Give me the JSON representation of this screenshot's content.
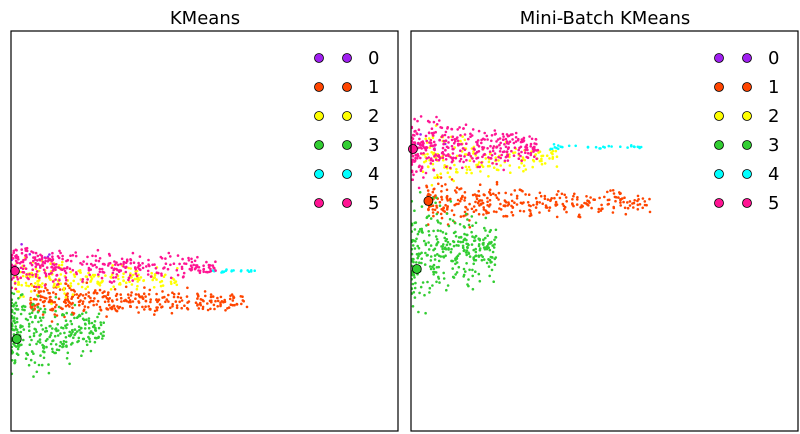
{
  "chart_data": [
    {
      "type": "scatter",
      "title": "KMeans",
      "xlabel": "",
      "ylabel": "",
      "x_ticks": [],
      "y_ticks": [],
      "xlim": [
        0,
        100
      ],
      "ylim": [
        0,
        100
      ],
      "legend": {
        "placement": "top-right",
        "labels": [
          "0",
          "1",
          "2",
          "3",
          "4",
          "5"
        ]
      },
      "series": [
        {
          "name": "0",
          "color": "#a020f0",
          "center": [
            6,
            44
          ],
          "spread": [
            4,
            3
          ],
          "count": 6,
          "extent": [
            0,
            10
          ]
        },
        {
          "name": "1",
          "color": "#ff4500",
          "center": [
            30,
            32.5
          ],
          "spread": [
            28,
            3.5
          ],
          "count": 340,
          "extent": [
            5,
            61
          ]
        },
        {
          "name": "2",
          "color": "#ffff00",
          "center": [
            22,
            38
          ],
          "spread": [
            20,
            4
          ],
          "count": 210,
          "extent": [
            1,
            43
          ]
        },
        {
          "name": "3",
          "color": "#32cd32",
          "center": [
            10,
            25
          ],
          "spread": [
            9,
            8
          ],
          "count": 300,
          "extent": [
            0,
            24
          ]
        },
        {
          "name": "4",
          "color": "#00ffff",
          "center": [
            58,
            40
          ],
          "spread": [
            6,
            0.4
          ],
          "count": 20,
          "extent": [
            52,
            63
          ]
        },
        {
          "name": "5",
          "color": "#ff1493",
          "center": [
            12,
            41
          ],
          "spread": [
            11,
            4
          ],
          "count": 330,
          "extent": [
            0,
            53
          ]
        }
      ],
      "centers": [
        {
          "cluster": "5",
          "color": "#ff1493",
          "x": 1,
          "y": 40
        },
        {
          "cluster": "3",
          "color": "#32cd32",
          "x": 1.5,
          "y": 23
        }
      ]
    },
    {
      "type": "scatter",
      "title": "Mini-Batch KMeans",
      "xlabel": "",
      "ylabel": "",
      "x_ticks": [],
      "y_ticks": [],
      "xlim": [
        0,
        100
      ],
      "ylim": [
        0,
        100
      ],
      "legend": {
        "placement": "top-right",
        "labels": [
          "0",
          "1",
          "2",
          "3",
          "4",
          "5"
        ]
      },
      "series": [
        {
          "name": "0",
          "color": "#a020f0",
          "center": [
            5,
            72
          ],
          "spread": [
            4,
            3
          ],
          "count": 6,
          "extent": [
            0,
            9
          ]
        },
        {
          "name": "1",
          "color": "#ff4500",
          "center": [
            34,
            57
          ],
          "spread": [
            28,
            4
          ],
          "count": 320,
          "extent": [
            4,
            62
          ]
        },
        {
          "name": "2",
          "color": "#ffff00",
          "center": [
            22,
            68
          ],
          "spread": [
            16,
            5
          ],
          "count": 160,
          "extent": [
            3,
            38
          ]
        },
        {
          "name": "3",
          "color": "#32cd32",
          "center": [
            10,
            45
          ],
          "spread": [
            10,
            11
          ],
          "count": 320,
          "extent": [
            0,
            22
          ]
        },
        {
          "name": "4",
          "color": "#00ffff",
          "center": [
            50,
            71
          ],
          "spread": [
            10,
            0.6
          ],
          "count": 30,
          "extent": [
            36,
            61
          ]
        },
        {
          "name": "5",
          "color": "#ff1493",
          "center": [
            12,
            71
          ],
          "spread": [
            12,
            6
          ],
          "count": 360,
          "extent": [
            0,
            33
          ]
        }
      ],
      "centers": [
        {
          "cluster": "5",
          "color": "#ff1493",
          "x": 0.5,
          "y": 70.5
        },
        {
          "cluster": "1",
          "color": "#ff4500",
          "x": 4.5,
          "y": 57.5
        },
        {
          "cluster": "3",
          "color": "#32cd32",
          "x": 1.5,
          "y": 40.5
        }
      ]
    }
  ]
}
